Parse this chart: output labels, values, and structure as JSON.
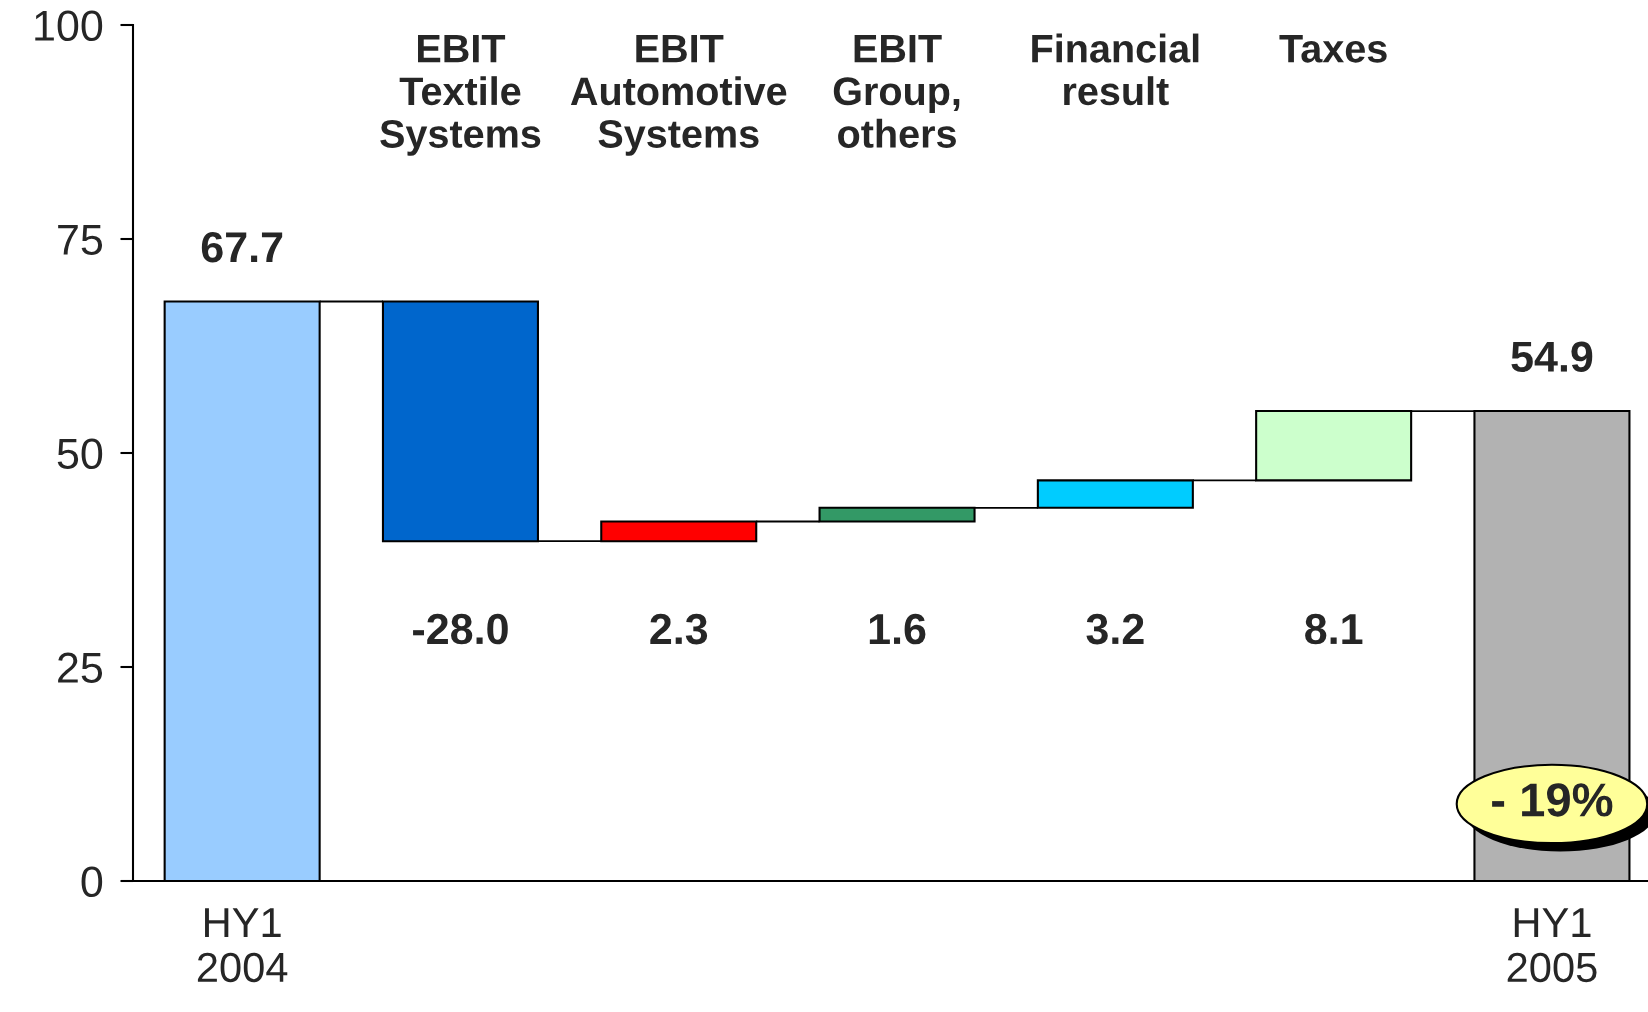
{
  "chart_data": {
    "type": "bar",
    "categories": [
      "HY1\n2004",
      "EBIT\nTextile\nSystems",
      "EBIT\nAutomotive\nSystems",
      "EBIT\nGroup,\nothers",
      "Financial\nresult",
      "Taxes",
      "HY1\n2005"
    ],
    "values": [
      67.7,
      -28.0,
      2.3,
      1.6,
      3.2,
      8.1,
      54.9
    ],
    "value_labels": [
      "67.7",
      "-28.0",
      "2.3",
      "1.6",
      "3.2",
      "8.1",
      "54.9"
    ],
    "base": [
      0,
      67.7,
      39.7,
      42.0,
      43.6,
      46.8,
      0
    ],
    "colors": [
      "#99ccff",
      "#0066cc",
      "#ff0000",
      "#339966",
      "#00ccff",
      "#ccffcc",
      "#b2b2b2"
    ],
    "ylim": [
      0,
      100
    ],
    "yticks": [
      0,
      25,
      50,
      75,
      100
    ],
    "annotations": [
      "- 19%"
    ]
  }
}
